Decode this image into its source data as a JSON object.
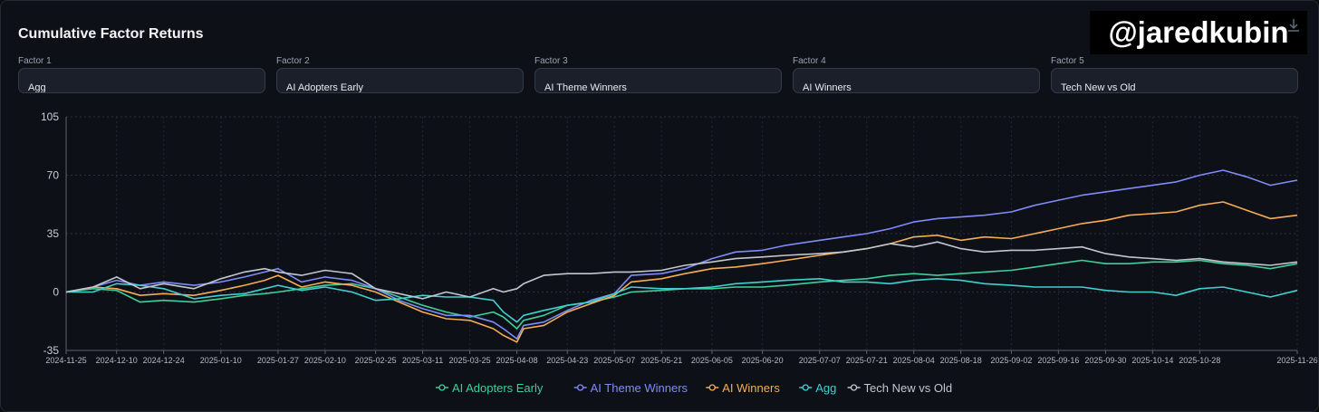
{
  "header": {
    "title": "Cumulative Factor Returns",
    "watermark": "@jaredkubin"
  },
  "toolbar": {
    "download_icon": "download-icon"
  },
  "factors": [
    {
      "label": "Factor 1",
      "value": "Agg"
    },
    {
      "label": "Factor 2",
      "value": "AI Adopters Early"
    },
    {
      "label": "Factor 3",
      "value": "AI Theme Winners"
    },
    {
      "label": "Factor 4",
      "value": "AI Winners"
    },
    {
      "label": "Factor 5",
      "value": "Tech New vs Old"
    }
  ],
  "chart_data": {
    "type": "line",
    "title": "",
    "xlabel": "",
    "ylabel": "",
    "ylim": [
      -35,
      105
    ],
    "yticks": [
      105,
      70,
      35,
      0,
      -35
    ],
    "xlim": [
      "2024-11-25",
      "2025-11-26"
    ],
    "xticks": [
      "2024-11-25",
      "2024-12-10",
      "2024-12-24",
      "2025-01-10",
      "2025-01-27",
      "2025-02-10",
      "2025-02-25",
      "2025-03-11",
      "2025-03-25",
      "2025-04-08",
      "2025-04-23",
      "2025-05-07",
      "2025-05-21",
      "2025-06-05",
      "2025-06-20",
      "2025-07-07",
      "2025-07-21",
      "2025-08-04",
      "2025-08-18",
      "2025-09-02",
      "2025-09-16",
      "2025-09-30",
      "2025-10-14",
      "2025-10-28",
      "2025-11-26"
    ],
    "grid": true,
    "legend": "bottom-center",
    "x": [
      "2024-11-25",
      "2024-12-03",
      "2024-12-10",
      "2024-12-17",
      "2024-12-24",
      "2025-01-02",
      "2025-01-10",
      "2025-01-17",
      "2025-01-23",
      "2025-01-27",
      "2025-02-03",
      "2025-02-10",
      "2025-02-18",
      "2025-02-25",
      "2025-03-04",
      "2025-03-11",
      "2025-03-18",
      "2025-03-25",
      "2025-04-01",
      "2025-04-04",
      "2025-04-08",
      "2025-04-10",
      "2025-04-16",
      "2025-04-23",
      "2025-04-30",
      "2025-05-07",
      "2025-05-12",
      "2025-05-21",
      "2025-05-28",
      "2025-06-05",
      "2025-06-12",
      "2025-06-20",
      "2025-06-27",
      "2025-07-07",
      "2025-07-14",
      "2025-07-21",
      "2025-07-28",
      "2025-08-04",
      "2025-08-11",
      "2025-08-18",
      "2025-08-25",
      "2025-09-02",
      "2025-09-09",
      "2025-09-16",
      "2025-09-23",
      "2025-09-30",
      "2025-10-07",
      "2025-10-14",
      "2025-10-21",
      "2025-10-28",
      "2025-11-04",
      "2025-11-11",
      "2025-11-18",
      "2025-11-26"
    ],
    "series": [
      {
        "name": "AI Adopters Early",
        "color": "#3fcf9a",
        "values": [
          0,
          2,
          1,
          -6,
          -5,
          -6,
          -4,
          -2,
          -1,
          0,
          2,
          4,
          5,
          2,
          -3,
          -8,
          -12,
          -15,
          -12,
          -15,
          -22,
          -17,
          -14,
          -8,
          -6,
          -3,
          0,
          1,
          2,
          2,
          3,
          3,
          4,
          6,
          7,
          8,
          10,
          11,
          10,
          11,
          12,
          13,
          15,
          17,
          19,
          17,
          17,
          18,
          18,
          19,
          17,
          16,
          14,
          17
        ]
      },
      {
        "name": "AI Theme Winners",
        "color": "#7f8cf7",
        "values": [
          0,
          3,
          7,
          4,
          6,
          4,
          6,
          9,
          12,
          14,
          6,
          9,
          7,
          2,
          -5,
          -10,
          -14,
          -14,
          -18,
          -22,
          -28,
          -20,
          -18,
          -11,
          -5,
          -1,
          10,
          11,
          14,
          20,
          24,
          25,
          28,
          31,
          33,
          35,
          38,
          42,
          44,
          45,
          46,
          48,
          52,
          55,
          58,
          60,
          62,
          64,
          66,
          70,
          73,
          69,
          64,
          67
        ]
      },
      {
        "name": "AI Winners",
        "color": "#f4ad55",
        "values": [
          0,
          3,
          2,
          -2,
          -1,
          -2,
          1,
          4,
          7,
          10,
          3,
          6,
          4,
          0,
          -6,
          -12,
          -16,
          -17,
          -22,
          -26,
          -30,
          -22,
          -20,
          -12,
          -7,
          -2,
          6,
          8,
          11,
          14,
          15,
          17,
          19,
          22,
          24,
          26,
          29,
          33,
          34,
          31,
          33,
          32,
          35,
          38,
          41,
          43,
          46,
          47,
          48,
          52,
          54,
          49,
          44,
          46
        ]
      },
      {
        "name": "Agg",
        "color": "#3fd0d0",
        "values": [
          0,
          0,
          5,
          4,
          2,
          -4,
          -2,
          -1,
          2,
          4,
          1,
          3,
          0,
          -5,
          -4,
          -2,
          -3,
          -3,
          -5,
          -12,
          -18,
          -14,
          -11,
          -8,
          -6,
          -1,
          3,
          2,
          2,
          3,
          5,
          6,
          7,
          8,
          6,
          6,
          5,
          7,
          8,
          7,
          5,
          4,
          3,
          3,
          3,
          1,
          0,
          0,
          -2,
          2,
          3,
          0,
          -3,
          1
        ]
      },
      {
        "name": "Tech New vs Old",
        "color": "#c2c6cf",
        "values": [
          0,
          3,
          9,
          2,
          5,
          2,
          8,
          12,
          14,
          12,
          10,
          13,
          11,
          2,
          -1,
          -4,
          0,
          -3,
          2,
          0,
          2,
          5,
          10,
          11,
          11,
          12,
          12,
          13,
          16,
          18,
          20,
          21,
          22,
          23,
          24,
          26,
          29,
          27,
          30,
          26,
          24,
          25,
          25,
          26,
          27,
          23,
          21,
          20,
          19,
          20,
          18,
          17,
          16,
          18
        ]
      }
    ]
  }
}
